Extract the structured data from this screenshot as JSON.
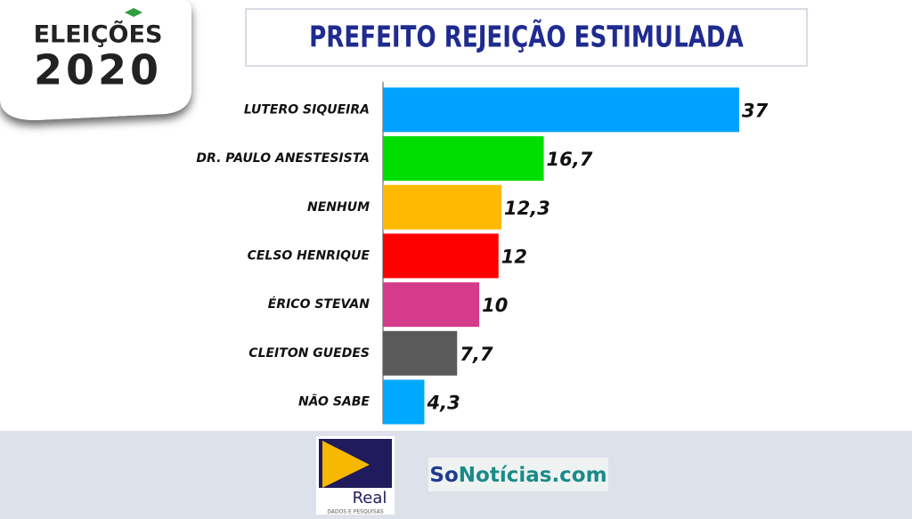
{
  "chart_data": {
    "type": "bar",
    "orientation": "horizontal",
    "title": "PREFEITO REJEIÇÃO ESTIMULADA",
    "categories": [
      "LUTERO SIQUEIRA",
      "DR. PAULO ANESTESISTA",
      "NENHUM",
      "CELSO HENRIQUE",
      "ÉRICO STEVAN",
      "CLEITON GUEDES",
      "NÃO SABE"
    ],
    "values": [
      37,
      16.7,
      12.3,
      12,
      10,
      7.7,
      4.3
    ],
    "value_labels": [
      "37",
      "16,7",
      "12,3",
      "12",
      "10",
      "7,7",
      "4,3"
    ],
    "colors": [
      "#00a2ff",
      "#00dd00",
      "#ffb900",
      "#ff0000",
      "#d43b8b",
      "#5a5a5a",
      "#00a8ff"
    ]
  },
  "branding": {
    "badge_top": "ELEIÇÕES",
    "badge_year": "2020",
    "real_name": "Real",
    "real_tagline": "DADOS E PESQUISAS",
    "site_prefix": "So",
    "site_rest": "Notícias.com"
  }
}
